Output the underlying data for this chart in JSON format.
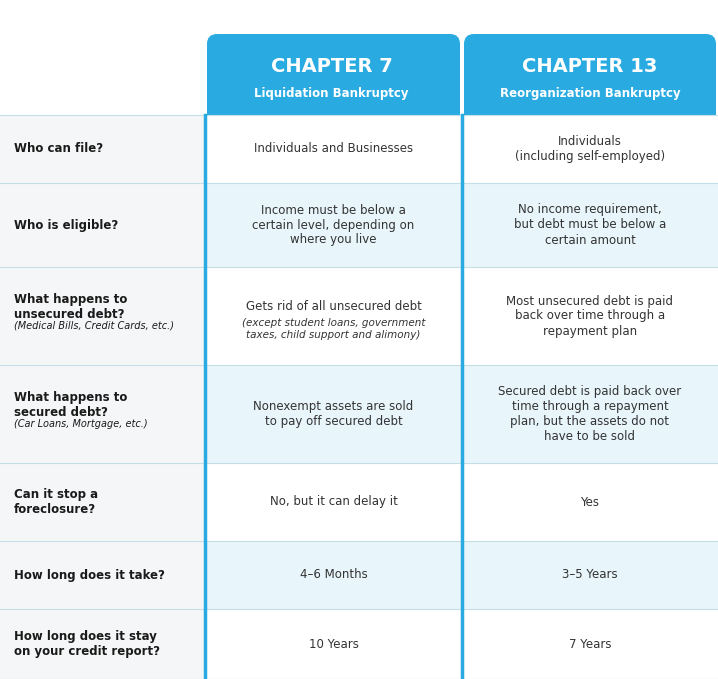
{
  "title_col1": "CHAPTER 7",
  "subtitle_col1": "Liquidation Bankruptcy",
  "title_col2": "CHAPTER 13",
  "subtitle_col2": "Reorganization Bankruptcy",
  "header_bg": "#29ABE2",
  "header_text_color": "#FFFFFF",
  "row_bg_white": "#FFFFFF",
  "row_bg_blue": "#E8F5FB",
  "label_col_bg": "#F5F6F7",
  "outer_bg": "#FFFFFF",
  "divider_color": "#C5DFE8",
  "blue_line_color": "#29ABE2",
  "label_text_color": "#1a1a1a",
  "cell_text_color": "#333333",
  "rows": [
    {
      "label": "Who can file?",
      "label_sub": "",
      "col1": "Individuals and Businesses",
      "col1_sub": "",
      "col2": "Individuals\n(including self-employed)",
      "col2_sub": ""
    },
    {
      "label": "Who is eligible?",
      "label_sub": "",
      "col1": "Income must be below a\ncertain level, depending on\nwhere you live",
      "col1_sub": "",
      "col2": "No income requirement,\nbut debt must be below a\ncertain amount",
      "col2_sub": ""
    },
    {
      "label": "What happens to\nunsecured debt?",
      "label_sub": "(Medical Bills, Credit Cards, etc.)",
      "col1": "Gets rid of all unsecured debt",
      "col1_sub": "(except student loans, government\ntaxes, child support and alimony)",
      "col2": "Most unsecured debt is paid\nback over time through a\nrepayment plan",
      "col2_sub": ""
    },
    {
      "label": "What happens to\nsecured debt?",
      "label_sub": "(Car Loans, Mortgage, etc.)",
      "col1": "Nonexempt assets are sold\nto pay off secured debt",
      "col1_sub": "",
      "col2": "Secured debt is paid back over\ntime through a repayment\nplan, but the assets do not\nhave to be sold",
      "col2_sub": ""
    },
    {
      "label": "Can it stop a\nforeclosure?",
      "label_sub": "",
      "col1": "No, but it can delay it",
      "col1_sub": "",
      "col2": "Yes",
      "col2_sub": ""
    },
    {
      "label": "How long does it take?",
      "label_sub": "",
      "col1": "4–6 Months",
      "col1_sub": "",
      "col2": "3–5 Years",
      "col2_sub": ""
    },
    {
      "label": "How long does it stay\non your credit report?",
      "label_sub": "",
      "col1": "10 Years",
      "col1_sub": "",
      "col2": "7 Years",
      "col2_sub": ""
    }
  ]
}
